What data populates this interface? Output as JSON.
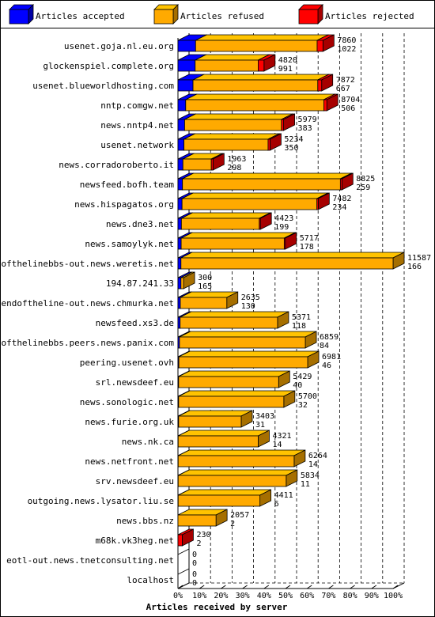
{
  "chart_data": {
    "type": "bar",
    "orientation": "horizontal",
    "stacked": true,
    "xlabel": "Articles received by server",
    "x_ticks": [
      "0%",
      "10%",
      "20%",
      "30%",
      "40%",
      "50%",
      "60%",
      "70%",
      "80%",
      "90%",
      "100%"
    ],
    "xlim": [
      0,
      100
    ],
    "grid": true,
    "legend_position": "top",
    "colors": {
      "accepted": "#0000ff",
      "refused": "#ffaa00",
      "rejected": "#ff0000",
      "gridline": "#000000",
      "frame": "#000000"
    },
    "series": [
      {
        "name": "Articles accepted",
        "key": "accepted"
      },
      {
        "name": "Articles refused",
        "key": "refused"
      },
      {
        "name": "Articles rejected",
        "key": "rejected"
      }
    ],
    "rows": [
      {
        "server": "usenet.goja.nl.eu.org",
        "total": "7860",
        "rejected": "1022",
        "acc_pct": 8.2,
        "ref_pct": 56.5,
        "rej_pct": 2.7
      },
      {
        "server": "glockenspiel.complete.org",
        "total": "4820",
        "rejected": "991",
        "acc_pct": 8.0,
        "ref_pct": 29.3,
        "rej_pct": 2.7
      },
      {
        "server": "usenet.blueworldhosting.com",
        "total": "7872",
        "rejected": "667",
        "acc_pct": 7.0,
        "ref_pct": 58.0,
        "rej_pct": 1.8
      },
      {
        "server": "nntp.comgw.net",
        "total": "8704",
        "rejected": "506",
        "acc_pct": 3.6,
        "ref_pct": 64.2,
        "rej_pct": 1.4
      },
      {
        "server": "news.nntp4.net",
        "total": "5979",
        "rejected": "383",
        "acc_pct": 3.1,
        "ref_pct": 45.0,
        "rej_pct": 1.0
      },
      {
        "server": "usenet.network",
        "total": "5234",
        "rejected": "350",
        "acc_pct": 2.8,
        "ref_pct": 39.1,
        "rej_pct": 0.9
      },
      {
        "server": "news.corradoroberto.it",
        "total": "1963",
        "rejected": "298",
        "acc_pct": 2.3,
        "ref_pct": 13.2,
        "rej_pct": 0.8
      },
      {
        "server": "newsfeed.bofh.team",
        "total": "8825",
        "rejected": "259",
        "acc_pct": 2.1,
        "ref_pct": 73.4,
        "rej_pct": 0.7
      },
      {
        "server": "news.hispagatos.org",
        "total": "7482",
        "rejected": "234",
        "acc_pct": 1.9,
        "ref_pct": 62.7,
        "rej_pct": 0.6
      },
      {
        "server": "news.dne3.net",
        "total": "4423",
        "rejected": "199",
        "acc_pct": 1.6,
        "ref_pct": 36.2,
        "rej_pct": 0.5
      },
      {
        "server": "news.samoylyk.net",
        "total": "5717",
        "rejected": "178",
        "acc_pct": 1.5,
        "ref_pct": 47.9,
        "rej_pct": 0.5
      },
      {
        "server": "endofthelinebbs-out.news.weretis.net",
        "total": "11587",
        "rejected": "166",
        "acc_pct": 1.4,
        "ref_pct": 98.6,
        "rej_pct": 0.0
      },
      {
        "server": "194.87.241.33",
        "total": "300",
        "rejected": "165",
        "acc_pct": 1.4,
        "ref_pct": 1.2,
        "rej_pct": 0.0
      },
      {
        "server": "endoftheline-out.news.chmurka.net",
        "total": "2635",
        "rejected": "130",
        "acc_pct": 1.1,
        "ref_pct": 21.6,
        "rej_pct": 0.0
      },
      {
        "server": "newsfeed.xs3.de",
        "total": "5371",
        "rejected": "118",
        "acc_pct": 1.0,
        "ref_pct": 45.3,
        "rej_pct": 0.0
      },
      {
        "server": "endofthelinebbs.peers.news.panix.com",
        "total": "6859",
        "rejected": "84",
        "acc_pct": 0.7,
        "ref_pct": 58.5,
        "rej_pct": 0.0
      },
      {
        "server": "peering.usenet.ovh",
        "total": "6981",
        "rejected": "46",
        "acc_pct": 0.4,
        "ref_pct": 59.9,
        "rej_pct": 0.0
      },
      {
        "server": "srl.newsdeef.eu",
        "total": "5429",
        "rejected": "40",
        "acc_pct": 0.3,
        "ref_pct": 46.5,
        "rej_pct": 0.0
      },
      {
        "server": "news.sonologic.net",
        "total": "5700",
        "rejected": "32",
        "acc_pct": 0.3,
        "ref_pct": 48.9,
        "rej_pct": 0.0
      },
      {
        "server": "news.furie.org.uk",
        "total": "3403",
        "rejected": "31",
        "acc_pct": 0.3,
        "ref_pct": 29.1,
        "rej_pct": 0.0
      },
      {
        "server": "news.nk.ca",
        "total": "4321",
        "rejected": "14",
        "acc_pct": 0.1,
        "ref_pct": 37.2,
        "rej_pct": 0.0
      },
      {
        "server": "news.netfront.net",
        "total": "6264",
        "rejected": "14",
        "acc_pct": 0.1,
        "ref_pct": 53.9,
        "rej_pct": 0.0
      },
      {
        "server": "srv.newsdeef.eu",
        "total": "5834",
        "rejected": "11",
        "acc_pct": 0.1,
        "ref_pct": 50.2,
        "rej_pct": 0.0
      },
      {
        "server": "outgoing.news.lysator.liu.se",
        "total": "4411",
        "rejected": "6",
        "acc_pct": 0.1,
        "ref_pct": 38.0,
        "rej_pct": 0.0
      },
      {
        "server": "news.bbs.nz",
        "total": "2057",
        "rejected": "2",
        "acc_pct": 0.0,
        "ref_pct": 17.7,
        "rej_pct": 0.0
      },
      {
        "server": "m68k.vk3heg.net",
        "total": "230",
        "rejected": "2",
        "acc_pct": 0.0,
        "ref_pct": 0.0,
        "rej_pct": 2.0
      },
      {
        "server": "eotl-out.news.tnetconsulting.net",
        "total": "0",
        "rejected": "0",
        "acc_pct": 0.0,
        "ref_pct": 0.0,
        "rej_pct": 0.0
      },
      {
        "server": "localhost",
        "total": "0",
        "rejected": "0",
        "acc_pct": 0.0,
        "ref_pct": 0.0,
        "rej_pct": 0.0
      }
    ]
  }
}
